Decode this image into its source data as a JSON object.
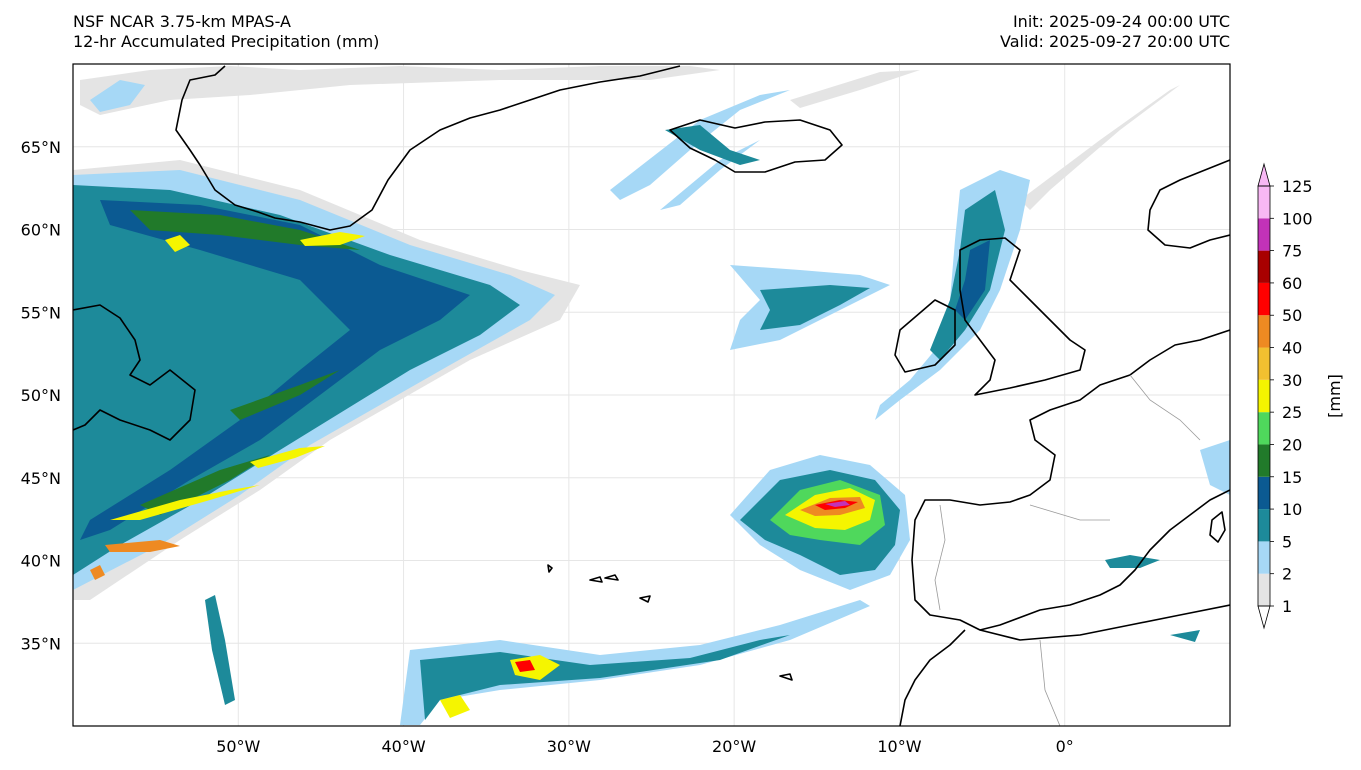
{
  "header": {
    "model_name": "NSF NCAR 3.75-km MPAS-A",
    "field_name": "12-hr Accumulated Precipitation (mm)",
    "init_time": "Init: 2025-09-24 00:00 UTC",
    "valid_time": "Valid: 2025-09-27 20:00 UTC"
  },
  "map": {
    "lon_range": [
      -60,
      10
    ],
    "lat_range": [
      30,
      70
    ],
    "lon_ticks": [
      {
        "value": -50,
        "label": "50°W"
      },
      {
        "value": -40,
        "label": "40°W"
      },
      {
        "value": -30,
        "label": "30°W"
      },
      {
        "value": -20,
        "label": "20°W"
      },
      {
        "value": -10,
        "label": "10°W"
      },
      {
        "value": 0,
        "label": "0°"
      }
    ],
    "lat_ticks": [
      {
        "value": 65,
        "label": "65°N"
      },
      {
        "value": 60,
        "label": "60°N"
      },
      {
        "value": 55,
        "label": "55°N"
      },
      {
        "value": 50,
        "label": "50°N"
      },
      {
        "value": 45,
        "label": "45°N"
      },
      {
        "value": 40,
        "label": "40°N"
      },
      {
        "value": 35,
        "label": "35°N"
      }
    ]
  },
  "colorbar": {
    "unit_label": "[mm]",
    "levels": [
      "1",
      "2",
      "5",
      "10",
      "15",
      "20",
      "25",
      "30",
      "40",
      "50",
      "60",
      "75",
      "100",
      "125"
    ],
    "colors": [
      "#e4e4e4",
      "#a6d8f6",
      "#1d8a9a",
      "#0b5a92",
      "#217a2a",
      "#4fd85c",
      "#f5f500",
      "#f2c030",
      "#ee8a22",
      "#ff0000",
      "#a80000",
      "#c232b8",
      "#f8b8f4"
    ]
  },
  "colors": {
    "land_outline": "#000000",
    "border_outline": "#9a9a9a",
    "grid": "#e6e6e6"
  }
}
